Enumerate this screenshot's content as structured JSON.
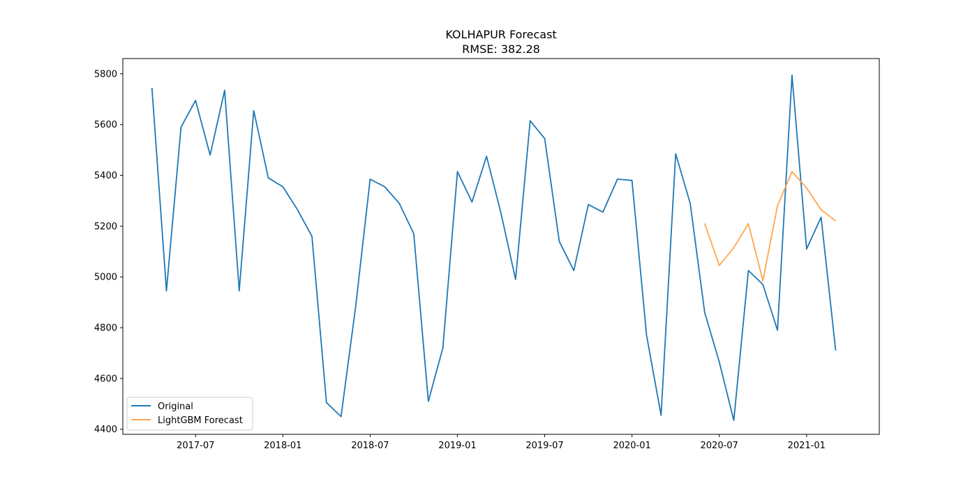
{
  "chart_data": {
    "type": "line",
    "title": "KOLHAPUR Forecast",
    "subtitle": "RMSE: 382.28",
    "xlabel": "",
    "ylabel": "",
    "x_ticks": [
      "2017-07",
      "2018-01",
      "2018-07",
      "2019-01",
      "2019-07",
      "2020-01",
      "2020-07",
      "2021-01"
    ],
    "y_ticks": [
      4400,
      4600,
      4800,
      5000,
      5200,
      5400,
      5600,
      5800
    ],
    "xlim": [
      "2017-02",
      "2021-06"
    ],
    "ylim": [
      4380,
      5860
    ],
    "grid": false,
    "legend": "lower-left",
    "series": [
      {
        "name": "Original",
        "color": "#1f77b4",
        "x": [
          "2017-04",
          "2017-05",
          "2017-06",
          "2017-07",
          "2017-08",
          "2017-09",
          "2017-10",
          "2017-11",
          "2017-12",
          "2018-01",
          "2018-02",
          "2018-03",
          "2018-04",
          "2018-05",
          "2018-06",
          "2018-07",
          "2018-08",
          "2018-09",
          "2018-10",
          "2018-11",
          "2018-12",
          "2019-01",
          "2019-02",
          "2019-03",
          "2019-04",
          "2019-05",
          "2019-06",
          "2019-07",
          "2019-08",
          "2019-09",
          "2019-10",
          "2019-11",
          "2019-12",
          "2020-01",
          "2020-02",
          "2020-03",
          "2020-04",
          "2020-05",
          "2020-06",
          "2020-07",
          "2020-08",
          "2020-09",
          "2020-10",
          "2020-11",
          "2020-12",
          "2021-01",
          "2021-02",
          "2021-03"
        ],
        "values": [
          5745,
          4945,
          5590,
          5695,
          5480,
          5735,
          4945,
          5655,
          5390,
          5355,
          5265,
          5160,
          4505,
          4450,
          4880,
          5385,
          5355,
          5290,
          5170,
          4510,
          4720,
          5415,
          5295,
          5475,
          5250,
          4990,
          5615,
          5545,
          5140,
          5025,
          5285,
          5255,
          5385,
          5380,
          4770,
          4455,
          5485,
          5290,
          4860,
          4665,
          4435,
          5025,
          4970,
          4790,
          5795,
          5110,
          5235,
          4710
        ]
      },
      {
        "name": "LightGBM Forecast",
        "color": "#ffa54f",
        "x": [
          "2020-06",
          "2020-07",
          "2020-08",
          "2020-09",
          "2020-10",
          "2020-11",
          "2020-12",
          "2021-01",
          "2021-02",
          "2021-03"
        ],
        "values": [
          5210,
          5045,
          5115,
          5210,
          4985,
          5280,
          5415,
          5350,
          5265,
          5220
        ]
      }
    ]
  }
}
